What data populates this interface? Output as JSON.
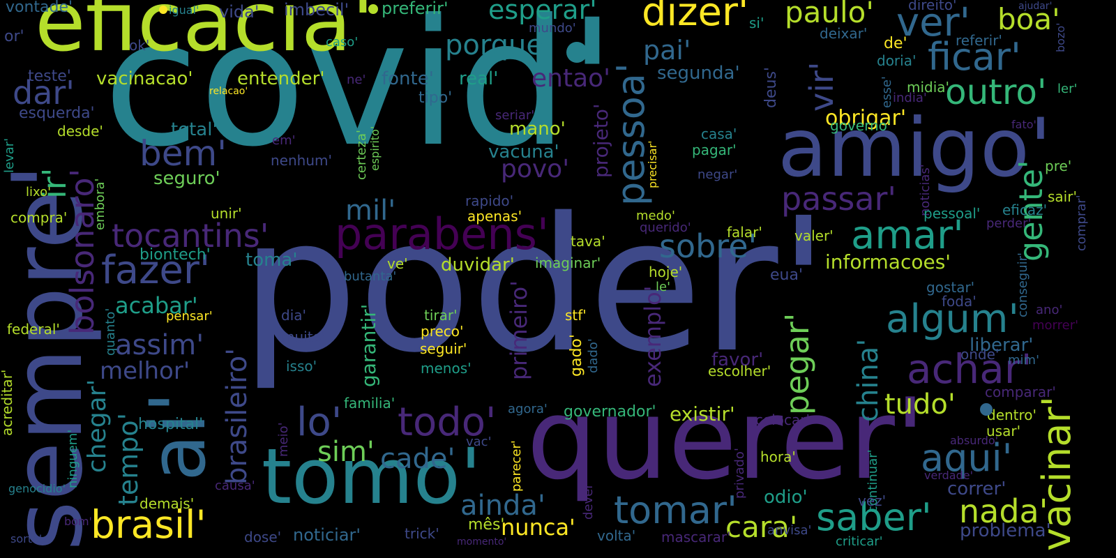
{
  "colors": {
    "background": "#000000",
    "palette": [
      "#440154",
      "#482878",
      "#3e4989",
      "#31688e",
      "#26828e",
      "#1f9e89",
      "#35b779",
      "#6ece58",
      "#b5de2b",
      "#fde725"
    ]
  },
  "words": [
    {
      "text": "covid'",
      "color": "#26828e"
    },
    {
      "text": "poder'",
      "color": "#3e4989"
    },
    {
      "text": "querer'",
      "color": "#482878"
    },
    {
      "text": "eficacia'",
      "color": "#b5de2b"
    },
    {
      "text": "amigo'",
      "color": "#3e4989"
    },
    {
      "text": "sempre'",
      "color": "#3e4989"
    },
    {
      "text": "tomo'",
      "color": "#26828e"
    },
    {
      "text": "ai'",
      "color": "#31688e"
    },
    {
      "text": "brasil'",
      "color": "#fde725"
    },
    {
      "text": "parabens'",
      "color": "#440154"
    },
    {
      "text": "tocantins'",
      "color": "#482878"
    },
    {
      "text": "vacinar'",
      "color": "#b5de2b"
    },
    {
      "text": "gente'",
      "color": "#35b779"
    },
    {
      "text": "outro'",
      "color": "#35b779"
    },
    {
      "text": "ficar'",
      "color": "#31688e"
    },
    {
      "text": "dizer'",
      "color": "#fde725"
    },
    {
      "text": "paulo'",
      "color": "#b5de2b"
    },
    {
      "text": "esperar'",
      "color": "#1f9e89"
    },
    {
      "text": "porque'",
      "color": "#26828e"
    },
    {
      "text": "pai'",
      "color": "#31688e"
    },
    {
      "text": "ver'",
      "color": "#31688e"
    },
    {
      "text": "boa'",
      "color": "#b5de2b"
    },
    {
      "text": "vir'",
      "color": "#3e4989"
    },
    {
      "text": "pessoa'",
      "color": "#31688e"
    },
    {
      "text": "dar'",
      "color": "#3e4989"
    },
    {
      "text": "bem'",
      "color": "#3e4989"
    },
    {
      "text": "fazer'",
      "color": "#3e4989"
    },
    {
      "text": "mil'",
      "color": "#31688e"
    },
    {
      "text": "povo'",
      "color": "#482878"
    },
    {
      "text": "sobre'",
      "color": "#31688e"
    },
    {
      "text": "amar'",
      "color": "#1f9e89"
    },
    {
      "text": "algum'",
      "color": "#26828e"
    },
    {
      "text": "achar'",
      "color": "#482878"
    },
    {
      "text": "passar'",
      "color": "#482878"
    },
    {
      "text": "pegar'",
      "color": "#6ece58"
    },
    {
      "text": "tudo'",
      "color": "#b5de2b"
    },
    {
      "text": "aqui'",
      "color": "#31688e"
    },
    {
      "text": "saber'",
      "color": "#1f9e89"
    },
    {
      "text": "tomar'",
      "color": "#31688e"
    },
    {
      "text": "nada'",
      "color": "#b5de2b"
    },
    {
      "text": "cara'",
      "color": "#b5de2b"
    },
    {
      "text": "todo'",
      "color": "#482878"
    },
    {
      "text": "lo'",
      "color": "#3e4989"
    },
    {
      "text": "sim'",
      "color": "#6ece58"
    },
    {
      "text": "cade'",
      "color": "#31688e"
    },
    {
      "text": "ainda'",
      "color": "#31688e"
    },
    {
      "text": "nunca'",
      "color": "#fde725"
    },
    {
      "text": "bolsonaro'",
      "color": "#482878"
    },
    {
      "text": "ir'",
      "color": "#35b779"
    },
    {
      "text": "brasileiro'",
      "color": "#3e4989"
    },
    {
      "text": "assim'",
      "color": "#3e4989"
    },
    {
      "text": "melhor'",
      "color": "#3e4989"
    },
    {
      "text": "acabar'",
      "color": "#1f9e89"
    },
    {
      "text": "chegar'",
      "color": "#26828e"
    },
    {
      "text": "tempo'",
      "color": "#26828e"
    },
    {
      "text": "hospital'",
      "color": "#26828e"
    },
    {
      "text": "china'",
      "color": "#26828e"
    },
    {
      "text": "exemplo'",
      "color": "#482878"
    },
    {
      "text": "primeiro'",
      "color": "#482878"
    },
    {
      "text": "garantir'",
      "color": "#35b779"
    },
    {
      "text": "existir'",
      "color": "#b5de2b"
    },
    {
      "text": "governador'",
      "color": "#35b779"
    },
    {
      "text": "duvidar'",
      "color": "#b5de2b"
    },
    {
      "text": "informacoes'",
      "color": "#b5de2b"
    },
    {
      "text": "obrigar'",
      "color": "#fde725"
    },
    {
      "text": "entender'",
      "color": "#b5de2b"
    },
    {
      "text": "vacinacao'",
      "color": "#b5de2b"
    },
    {
      "text": "segunda'",
      "color": "#31688e"
    },
    {
      "text": "fonte'",
      "color": "#31688e"
    },
    {
      "text": "real'",
      "color": "#1f9e89"
    },
    {
      "text": "entao'",
      "color": "#482878"
    },
    {
      "text": "mano'",
      "color": "#b5de2b"
    },
    {
      "text": "vacuna'",
      "color": "#26828e"
    },
    {
      "text": "total'",
      "color": "#26828e"
    },
    {
      "text": "seguro'",
      "color": "#6ece58"
    },
    {
      "text": "biontech'",
      "color": "#1f9e89"
    },
    {
      "text": "toma'",
      "color": "#26828e"
    },
    {
      "text": "esquerda'",
      "color": "#3e4989"
    },
    {
      "text": "deus'",
      "color": "#3e4989"
    },
    {
      "text": "projeto'",
      "color": "#482878"
    },
    {
      "text": "favor'",
      "color": "#482878"
    },
    {
      "text": "escolher'",
      "color": "#b5de2b"
    },
    {
      "text": "correr'",
      "color": "#3e4989"
    },
    {
      "text": "liberar'",
      "color": "#31688e"
    },
    {
      "text": "comparar'",
      "color": "#482878"
    },
    {
      "text": "odio'",
      "color": "#1f9e89"
    },
    {
      "text": "problema'",
      "color": "#3e4989"
    },
    {
      "text": "noticiar'",
      "color": "#31688e"
    },
    {
      "text": "volta'",
      "color": "#31688e"
    },
    {
      "text": "demais'",
      "color": "#b5de2b"
    },
    {
      "text": "familia'",
      "color": "#35b779"
    },
    {
      "text": "vontade'",
      "color": "#31688e"
    },
    {
      "text": "igual'",
      "color": "#26828e"
    },
    {
      "text": "vida'",
      "color": "#3e4989"
    },
    {
      "text": "imbecil'",
      "color": "#3e4989"
    },
    {
      "text": "preferir'",
      "color": "#35b779"
    },
    {
      "text": "mundo'",
      "color": "#3e4989"
    },
    {
      "text": "direito'",
      "color": "#3e4989"
    },
    {
      "text": "ajudar'",
      "color": "#3e4989"
    },
    {
      "text": "si'",
      "color": "#1f9e89"
    },
    {
      "text": "deixar'",
      "color": "#31688e"
    },
    {
      "text": "de'",
      "color": "#fde725"
    },
    {
      "text": "referir'",
      "color": "#31688e"
    },
    {
      "text": "bozo'",
      "color": "#3e4989"
    },
    {
      "text": "or'",
      "color": "#3e4989"
    },
    {
      "text": "ok'",
      "color": "#3e4989"
    },
    {
      "text": "caso'",
      "color": "#1f9e89"
    },
    {
      "text": "doria'",
      "color": "#26828e"
    },
    {
      "text": "esse'",
      "color": "#31688e"
    },
    {
      "text": "midia'",
      "color": "#6ece58"
    },
    {
      "text": "india'",
      "color": "#482878"
    },
    {
      "text": "ler'",
      "color": "#35b779"
    },
    {
      "text": "teste'",
      "color": "#3e4989"
    },
    {
      "text": "relacao'",
      "color": "#fde725"
    },
    {
      "text": "ne'",
      "color": "#482878"
    },
    {
      "text": "tipo'",
      "color": "#31688e"
    },
    {
      "text": "seriar'",
      "color": "#482878"
    },
    {
      "text": "desde'",
      "color": "#b5de2b"
    },
    {
      "text": "levar'",
      "color": "#1f9e89"
    },
    {
      "text": "em'",
      "color": "#482878"
    },
    {
      "text": "nenhum'",
      "color": "#3e4989"
    },
    {
      "text": "certeza'",
      "color": "#6ece58"
    },
    {
      "text": "espirito'",
      "color": "#6ece58"
    },
    {
      "text": "precisar'",
      "color": "#fde725"
    },
    {
      "text": "casa'",
      "color": "#26828e"
    },
    {
      "text": "pagar'",
      "color": "#35b779"
    },
    {
      "text": "negar'",
      "color": "#3e4989"
    },
    {
      "text": "governo'",
      "color": "#35b779"
    },
    {
      "text": "fato'",
      "color": "#482878"
    },
    {
      "text": "pre'",
      "color": "#6ece58"
    },
    {
      "text": "lixo'",
      "color": "#b5de2b"
    },
    {
      "text": "embora'",
      "color": "#6ece58"
    },
    {
      "text": "compra'",
      "color": "#b5de2b"
    },
    {
      "text": "unir'",
      "color": "#b5de2b"
    },
    {
      "text": "rapido'",
      "color": "#3e4989"
    },
    {
      "text": "apenas'",
      "color": "#fde725"
    },
    {
      "text": "medo'",
      "color": "#b5de2b"
    },
    {
      "text": "querido'",
      "color": "#482878"
    },
    {
      "text": "noticias'",
      "color": "#482878"
    },
    {
      "text": "pessoal'",
      "color": "#1f9e89"
    },
    {
      "text": "sair'",
      "color": "#b5de2b"
    },
    {
      "text": "comprar'",
      "color": "#3e4989"
    },
    {
      "text": "eficaz'",
      "color": "#26828e"
    },
    {
      "text": "perder'",
      "color": "#482878"
    },
    {
      "text": "conseguir'",
      "color": "#31688e"
    },
    {
      "text": "falar'",
      "color": "#b5de2b"
    },
    {
      "text": "valer'",
      "color": "#b5de2b"
    },
    {
      "text": "tava'",
      "color": "#b5de2b"
    },
    {
      "text": "ve'",
      "color": "#b5de2b"
    },
    {
      "text": "imaginar'",
      "color": "#6ece58"
    },
    {
      "text": "hoje'",
      "color": "#b5de2b"
    },
    {
      "text": "le'",
      "color": "#6ece58"
    },
    {
      "text": "eua'",
      "color": "#3e4989"
    },
    {
      "text": "gostar'",
      "color": "#31688e"
    },
    {
      "text": "foda'",
      "color": "#3e4989"
    },
    {
      "text": "ano'",
      "color": "#482878"
    },
    {
      "text": "morrer'",
      "color": "#440154"
    },
    {
      "text": "butanta'",
      "color": "#31688e"
    },
    {
      "text": "dia'",
      "color": "#3e4989"
    },
    {
      "text": "tirar'",
      "color": "#6ece58"
    },
    {
      "text": "stf'",
      "color": "#fde725"
    },
    {
      "text": "preco'",
      "color": "#fde725"
    },
    {
      "text": "seguir'",
      "color": "#fde725"
    },
    {
      "text": "menos'",
      "color": "#1f9e89"
    },
    {
      "text": "pensar'",
      "color": "#fde725"
    },
    {
      "text": "quanto'",
      "color": "#26828e"
    },
    {
      "text": "muito'",
      "color": "#3e4989"
    },
    {
      "text": "isso'",
      "color": "#26828e"
    },
    {
      "text": "gado'",
      "color": "#fde725"
    },
    {
      "text": "dado'",
      "color": "#31688e"
    },
    {
      "text": "mim'",
      "color": "#31688e"
    },
    {
      "text": "onde'",
      "color": "#3e4989"
    },
    {
      "text": "federal'",
      "color": "#b5de2b"
    },
    {
      "text": "acreditar'",
      "color": "#b5de2b"
    },
    {
      "text": "ninguem'",
      "color": "#1f9e89"
    },
    {
      "text": "meio'",
      "color": "#482878"
    },
    {
      "text": "genocidio'",
      "color": "#26828e"
    },
    {
      "text": "bom'",
      "color": "#482878"
    },
    {
      "text": "sorte'",
      "color": "#3e4989"
    },
    {
      "text": "agora'",
      "color": "#31688e"
    },
    {
      "text": "vac'",
      "color": "#3e4989"
    },
    {
      "text": "parecer'",
      "color": "#fde725"
    },
    {
      "text": "colocar'",
      "color": "#482878"
    },
    {
      "text": "dever'",
      "color": "#482878"
    },
    {
      "text": "privado'",
      "color": "#482878"
    },
    {
      "text": "hora'",
      "color": "#b5de2b"
    },
    {
      "text": "anvisa'",
      "color": "#3e4989"
    },
    {
      "text": "continuar'",
      "color": "#1f9e89"
    },
    {
      "text": "absurdo'",
      "color": "#482878"
    },
    {
      "text": "usar'",
      "color": "#b5de2b"
    },
    {
      "text": "dentro'",
      "color": "#b5de2b"
    },
    {
      "text": "verdade'",
      "color": "#482878"
    },
    {
      "text": "vez'",
      "color": "#3e4989"
    },
    {
      "text": "causa'",
      "color": "#482878"
    },
    {
      "text": "mês'",
      "color": "#b5de2b"
    },
    {
      "text": "dose'",
      "color": "#3e4989"
    },
    {
      "text": "trick'",
      "color": "#3e4989"
    },
    {
      "text": "momento'",
      "color": "#482878"
    },
    {
      "text": "mascarar'",
      "color": "#482878"
    },
    {
      "text": "criticar'",
      "color": "#1f9e89"
    }
  ]
}
